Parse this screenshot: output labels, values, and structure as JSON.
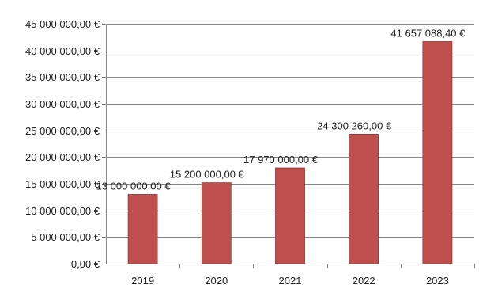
{
  "chart_data": {
    "type": "bar",
    "title": "",
    "xlabel": "",
    "ylabel": "",
    "categories": [
      "2019",
      "2020",
      "2021",
      "2022",
      "2023"
    ],
    "values": [
      13000000.0,
      15200000.0,
      17970000.0,
      24300260.0,
      41657088.4
    ],
    "data_labels": [
      "13 000 000,00 €",
      "15 200 000,00 €",
      "17 970 000,00 €",
      "24 300 260,00 €",
      "41 657 088,40 €"
    ],
    "ylim": [
      0,
      45000000
    ],
    "y_ticks": [
      0,
      5000000,
      10000000,
      15000000,
      20000000,
      25000000,
      30000000,
      35000000,
      40000000,
      45000000
    ],
    "y_tick_labels": [
      "0,00 €",
      "5 000 000,00 €",
      "10 000 000,00 €",
      "15 000 000,00 €",
      "20 000 000,00 €",
      "25 000 000,00 €",
      "30 000 000,00 €",
      "35 000 000,00 €",
      "40 000 000,00 €",
      "45 000 000,00 €"
    ],
    "grid": true,
    "legend": "none",
    "bar_color": "#c0504d",
    "bar_edge_color": "#8c3836",
    "gridline_color": "#868686"
  }
}
